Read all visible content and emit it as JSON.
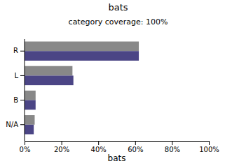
{
  "chart_data": {
    "type": "bar",
    "orientation": "horizontal",
    "title": "bats",
    "subtitle": "category coverage: 100%",
    "x_label": "bats",
    "categories": [
      "R",
      "L",
      "B",
      "N/A"
    ],
    "series": [
      {
        "color": "#888888",
        "values": [
          62,
          26,
          6,
          5.5
        ]
      },
      {
        "color": "#4b4585",
        "values": [
          62,
          26.5,
          6,
          5
        ]
      }
    ],
    "xlim": [
      0,
      100
    ],
    "xticks": [
      {
        "value": 0,
        "label": "0%"
      },
      {
        "value": 20,
        "label": "20%"
      },
      {
        "value": 40,
        "label": "40%"
      },
      {
        "value": 60,
        "label": "60%"
      },
      {
        "value": 80,
        "label": "80%"
      },
      {
        "value": 100,
        "label": "100%"
      }
    ],
    "grid": false
  }
}
